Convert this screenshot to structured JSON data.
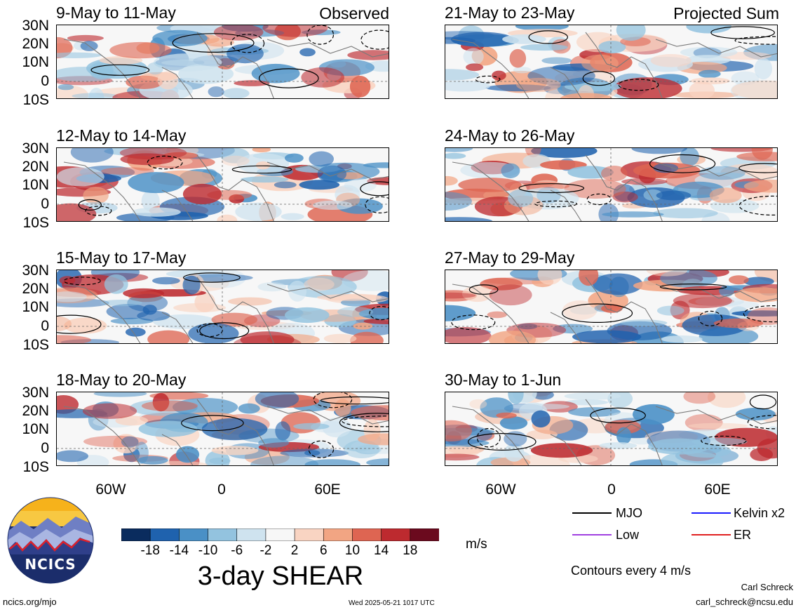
{
  "left_column": {
    "corner_label": "Observed",
    "panels": [
      {
        "title": "9-May to 11-May"
      },
      {
        "title": "12-May to 14-May"
      },
      {
        "title": "15-May to 17-May"
      },
      {
        "title": "18-May to 20-May"
      }
    ]
  },
  "right_column": {
    "corner_label": "Projected Sum",
    "panels": [
      {
        "title": "21-May to 23-May"
      },
      {
        "title": "24-May to 26-May"
      },
      {
        "title": "27-May to 29-May"
      },
      {
        "title": "30-May to 1-Jun"
      }
    ]
  },
  "lat_labels": [
    "30N",
    "20N",
    "10N",
    "0",
    "10S"
  ],
  "lon_labels": [
    "60W",
    "0",
    "60E"
  ],
  "colorbar": {
    "colors": [
      "#0a2c5e",
      "#1f62ae",
      "#4a90c6",
      "#93c3df",
      "#cfe3ef",
      "#f7f7f7",
      "#f9d4c2",
      "#f2a583",
      "#de6552",
      "#bd2a2f",
      "#6b0a1e"
    ],
    "tick_labels": [
      "-18",
      "-14",
      "-10",
      "-6",
      "-2",
      "2",
      "6",
      "10",
      "14",
      "18"
    ],
    "units": "m/s",
    "title": "3-day SHEAR"
  },
  "legend": {
    "items": [
      {
        "label": "MJO",
        "color": "#000000"
      },
      {
        "label": "Kelvin x2",
        "color": "#1a1aff"
      },
      {
        "label": "Low",
        "color": "#a040e0"
      },
      {
        "label": "ER",
        "color": "#e02020"
      }
    ],
    "contour_note": "Contours every 4 m/s"
  },
  "logo": {
    "text": "NCICS"
  },
  "footer": {
    "website": "ncics.org/mjo",
    "timestamp": "Wed 2025-05-21 1017 UTC",
    "author": "Carl Schreck",
    "email": "carl_schreck@ncsu.edu"
  }
}
